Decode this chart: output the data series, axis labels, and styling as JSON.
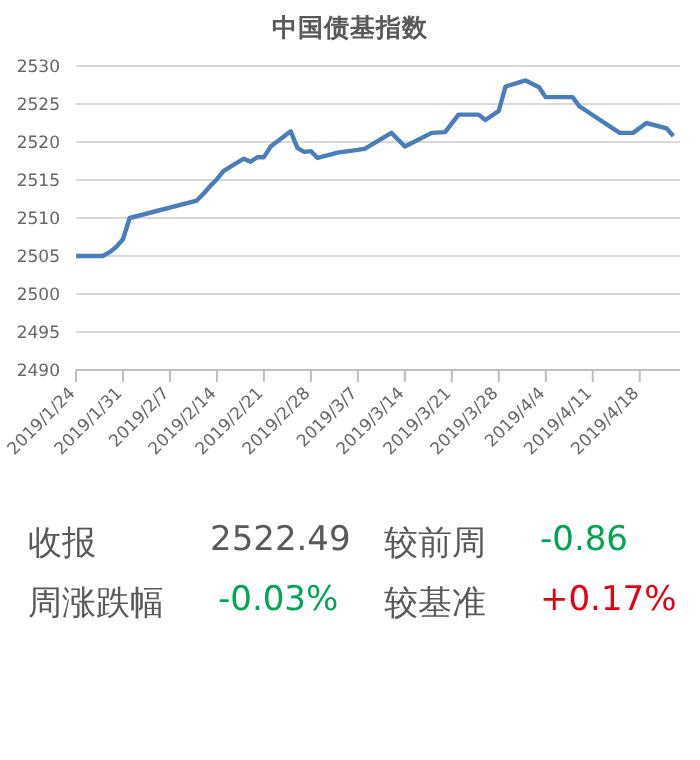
{
  "chart_data": [
    {
      "type": "line",
      "title": "中国债基指数",
      "x": [
        "2019-01-24",
        "2019-01-28",
        "2019-01-29",
        "2019-01-30",
        "2019-01-31",
        "2019-02-01",
        "2019-02-11",
        "2019-02-12",
        "2019-02-13",
        "2019-02-14",
        "2019-02-15",
        "2019-02-18",
        "2019-02-19",
        "2019-02-20",
        "2019-02-21",
        "2019-02-22",
        "2019-02-25",
        "2019-02-26",
        "2019-02-27",
        "2019-02-28",
        "2019-03-01",
        "2019-03-04",
        "2019-03-08",
        "2019-03-12",
        "2019-03-14",
        "2019-03-18",
        "2019-03-20",
        "2019-03-22",
        "2019-03-25",
        "2019-03-26",
        "2019-03-28",
        "2019-03-29",
        "2019-04-01",
        "2019-04-03",
        "2019-04-04",
        "2019-04-08",
        "2019-04-09",
        "2019-04-15",
        "2019-04-17",
        "2019-04-19",
        "2019-04-22",
        "2019-04-23"
      ],
      "series": [
        {
          "color": "#4a7ebb",
          "values": [
            2505.0,
            2505.0,
            2505.5,
            2506.2,
            2507.2,
            2510.0,
            2512.3,
            2513.2,
            2514.2,
            2515.1,
            2516.2,
            2517.8,
            2517.4,
            2518.0,
            2518.0,
            2519.4,
            2521.4,
            2519.2,
            2518.7,
            2518.8,
            2517.9,
            2518.6,
            2519.1,
            2521.2,
            2519.4,
            2521.2,
            2521.3,
            2523.6,
            2523.6,
            2522.9,
            2524.1,
            2527.3,
            2528.1,
            2527.2,
            2525.9,
            2525.9,
            2524.7,
            2521.2,
            2521.2,
            2522.5,
            2521.8,
            2520.8
          ]
        }
      ],
      "xlim": [
        "2019-01-24",
        "2019-04-24"
      ],
      "xticks": [
        {
          "value": "2019-01-24",
          "label": "2019/1/24"
        },
        {
          "value": "2019-01-31",
          "label": "2019/1/31"
        },
        {
          "value": "2019-02-07",
          "label": "2019/2/7"
        },
        {
          "value": "2019-02-14",
          "label": "2019/2/14"
        },
        {
          "value": "2019-02-21",
          "label": "2019/2/21"
        },
        {
          "value": "2019-02-28",
          "label": "2019/2/28"
        },
        {
          "value": "2019-03-07",
          "label": "2019/3/7"
        },
        {
          "value": "2019-03-14",
          "label": "2019/3/14"
        },
        {
          "value": "2019-03-21",
          "label": "2019/3/21"
        },
        {
          "value": "2019-03-28",
          "label": "2019/3/28"
        },
        {
          "value": "2019-04-04",
          "label": "2019/4/4"
        },
        {
          "value": "2019-04-11",
          "label": "2019/4/11"
        },
        {
          "value": "2019-04-18",
          "label": "2019/4/18"
        }
      ],
      "ylim": [
        2490,
        2530
      ],
      "yticks": [
        2490,
        2495,
        2500,
        2505,
        2510,
        2515,
        2520,
        2525,
        2530
      ],
      "grid": "y",
      "marker": "none",
      "line_style": "solid"
    },
    {
      "type": "other",
      "annotations": [
        "收报",
        "2522.49",
        "较前周",
        "-0.86",
        "周涨跌幅",
        "-0.03%",
        "较基准",
        "+0.17%"
      ],
      "colors": [
        "#595959",
        "#595959",
        "#595959",
        "#00a651",
        "#595959",
        "#00a651",
        "#595959",
        "#e60012"
      ]
    }
  ]
}
